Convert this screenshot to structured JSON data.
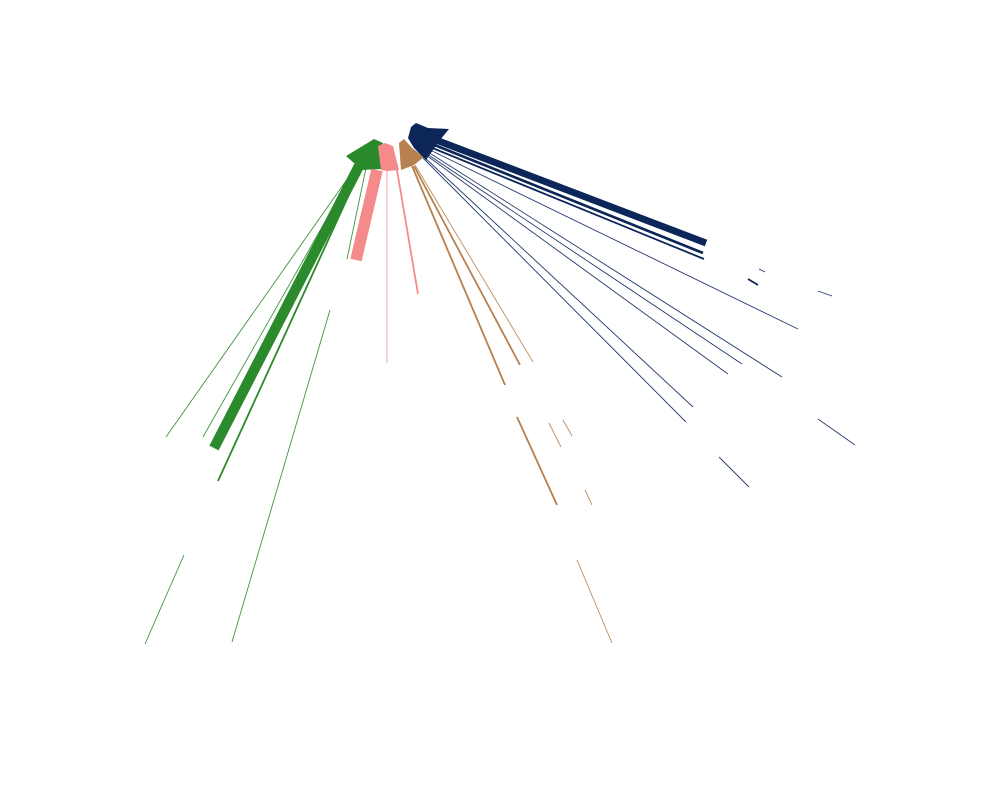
{
  "diagram": {
    "type": "radial-sankey",
    "background": "#ffffff",
    "groups": [
      {
        "key": "green",
        "color": "#2b8a2b",
        "flows": [
          {
            "weight": 1
          },
          {
            "weight": 1
          },
          {
            "weight": 9
          },
          {
            "weight": 2
          },
          {
            "weight": 1
          },
          {
            "weight": 1
          },
          {
            "weight": 1
          }
        ]
      },
      {
        "key": "pink",
        "color": "#f48a8a",
        "flows": [
          {
            "weight": 10
          },
          {
            "weight": 1
          },
          {
            "weight": 2
          }
        ]
      },
      {
        "key": "tan",
        "color": "#b7814f",
        "flows": [
          {
            "weight": 2
          },
          {
            "weight": 2
          },
          {
            "weight": 1
          },
          {
            "weight": 2
          },
          {
            "weight": 1
          },
          {
            "weight": 1
          },
          {
            "weight": 1
          },
          {
            "weight": 1
          }
        ]
      },
      {
        "key": "navy",
        "color": "#0c2659",
        "flows": [
          {
            "weight": 6
          },
          {
            "weight": 3
          },
          {
            "weight": 2
          },
          {
            "weight": 1
          },
          {
            "weight": 1
          },
          {
            "weight": 1
          },
          {
            "weight": 1
          },
          {
            "weight": 1
          },
          {
            "weight": 1
          },
          {
            "weight": 2
          },
          {
            "weight": 1
          },
          {
            "weight": 1
          },
          {
            "weight": 1
          },
          {
            "weight": 1
          }
        ]
      }
    ]
  }
}
